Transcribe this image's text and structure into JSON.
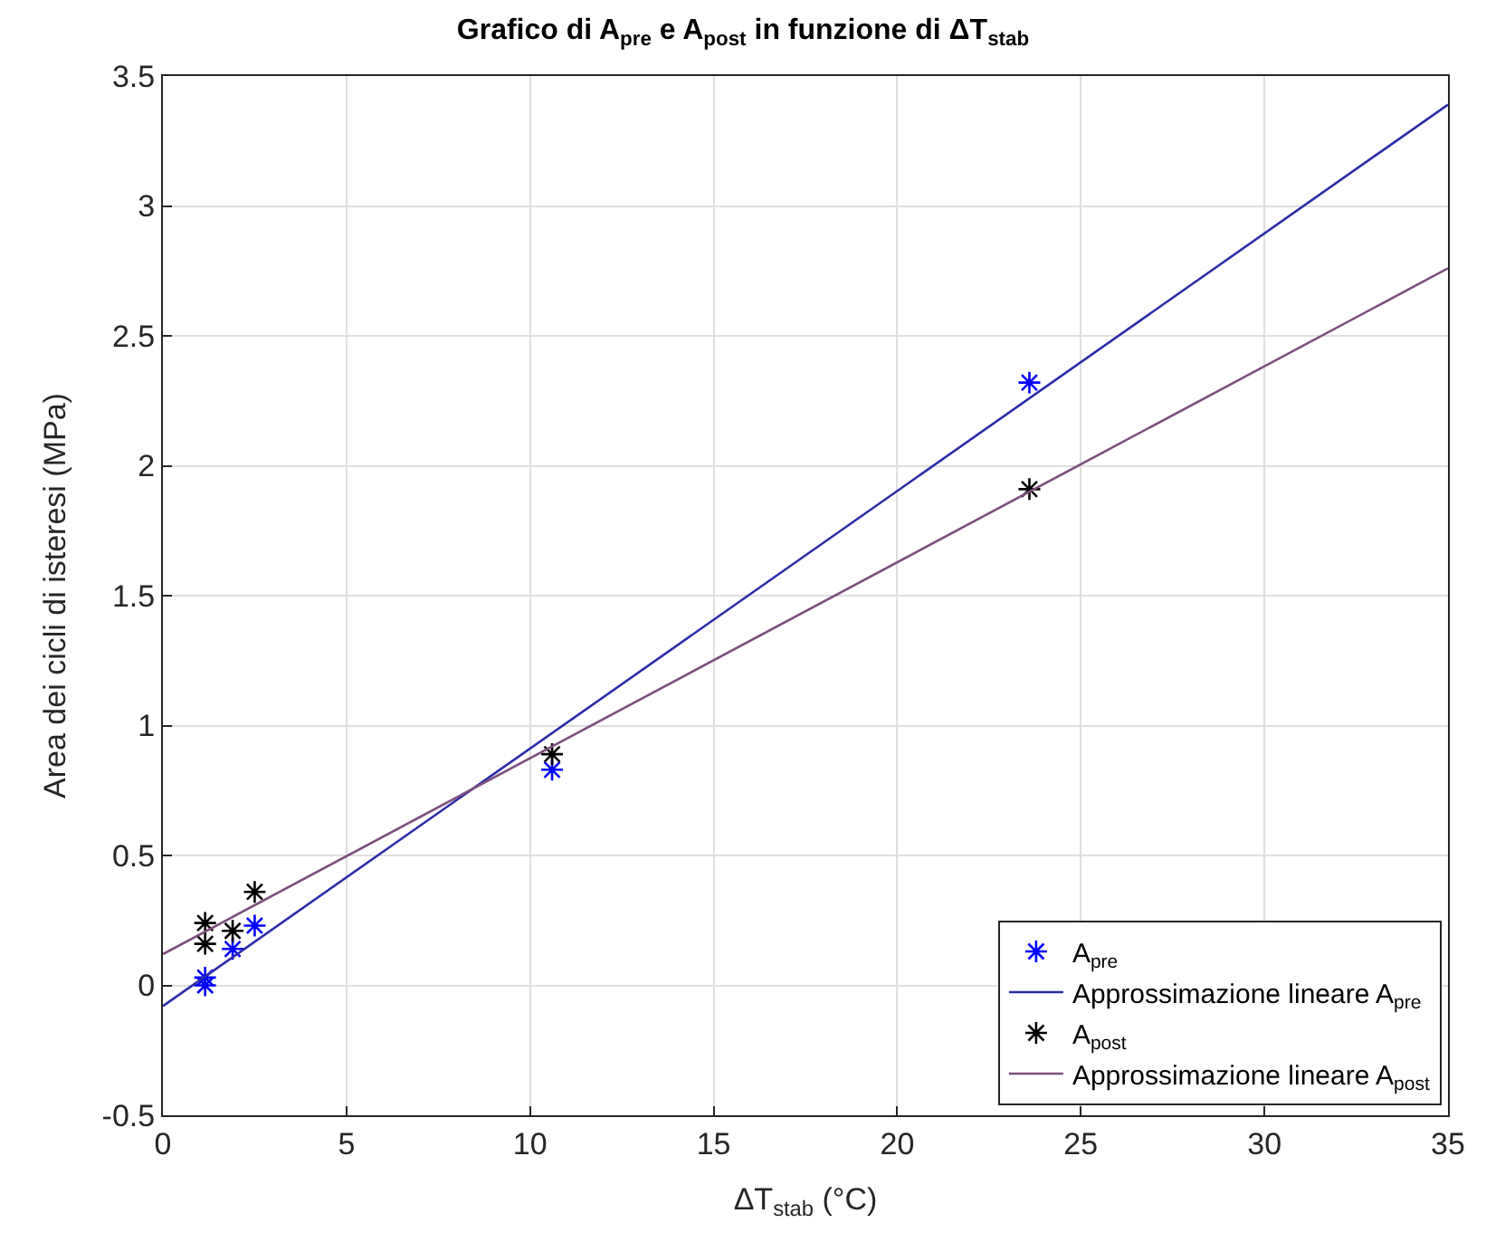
{
  "chart_data": {
    "type": "scatter",
    "title": "Grafico di A$_{pre}$ e A$_{post}$ in funzione di ΔT$_{stab}$",
    "xlabel": "ΔT$_{stab}$ (°C)",
    "ylabel": "Area dei cicli di isteresi (MPa)",
    "xlim": [
      0,
      35
    ],
    "xticks": [
      0,
      5,
      10,
      15,
      20,
      25,
      30,
      35
    ],
    "ylim": [
      -0.5,
      3.5
    ],
    "yticks": [
      -0.5,
      0,
      0.5,
      1,
      1.5,
      2,
      2.5,
      3,
      3.5
    ],
    "grid": true,
    "legend": "bottom right",
    "series": [
      {
        "name": "A$_{pre}$",
        "marker": "cross",
        "color": "#0000ff",
        "x": [
          1.15,
          1.15,
          1.9,
          2.5,
          10.6,
          23.6
        ],
        "values": [
          0.0,
          0.03,
          0.14,
          0.23,
          0.83,
          2.32
        ]
      },
      {
        "name": "Approssimazione lineare A$_{pre}$",
        "type": "line",
        "marker": "none",
        "color": "#2c2ca8",
        "x": [
          0,
          35
        ],
        "values": [
          -0.08,
          3.39
        ]
      },
      {
        "name": "A$_{post}$",
        "marker": "cross",
        "color": "#000000",
        "x": [
          1.15,
          1.15,
          1.9,
          2.5,
          10.6,
          23.6
        ],
        "values": [
          0.16,
          0.24,
          0.21,
          0.36,
          0.89,
          1.91
        ]
      },
      {
        "name": "Approssimazione lineare A$_{post}$",
        "type": "line",
        "marker": "none",
        "color": "#7e4e7e",
        "x": [
          0,
          35
        ],
        "values": [
          0.12,
          2.76
        ]
      }
    ]
  }
}
